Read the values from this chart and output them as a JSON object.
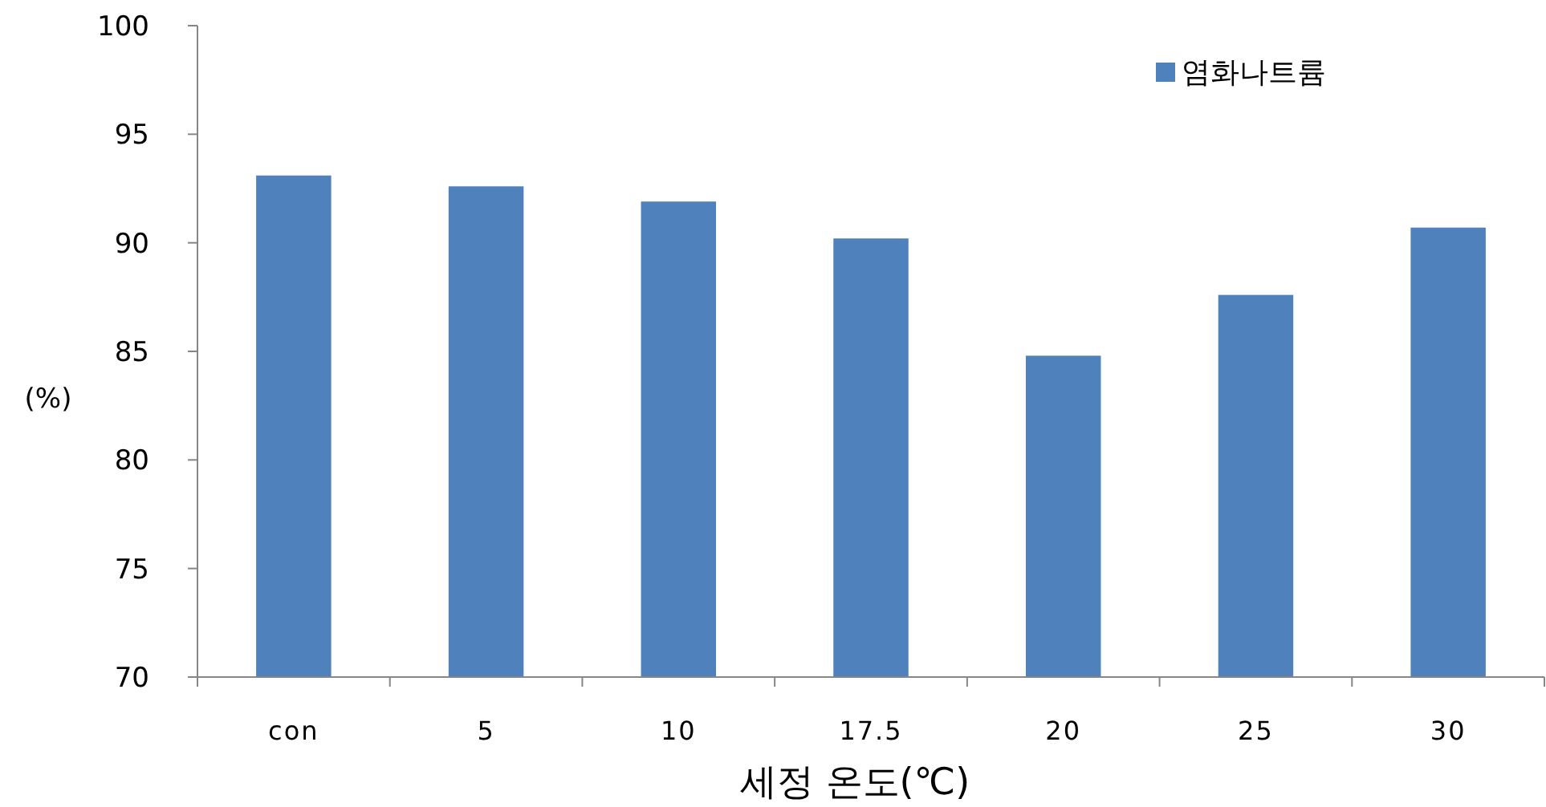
{
  "chart_data": {
    "type": "bar",
    "xlabel": "세정 온도(℃)",
    "ylabel": "(%)",
    "categories": [
      "con",
      "5",
      "10",
      "17.5",
      "20",
      "25",
      "30"
    ],
    "series": [
      {
        "name": "염화나트륨",
        "color": "#4f81bd",
        "values": [
          93.1,
          92.6,
          91.9,
          90.2,
          84.8,
          87.6,
          90.7
        ]
      }
    ],
    "ylim": [
      70,
      100
    ],
    "yticks": [
      70,
      75,
      80,
      85,
      90,
      95,
      100
    ],
    "grid": false,
    "legend": "top right"
  }
}
